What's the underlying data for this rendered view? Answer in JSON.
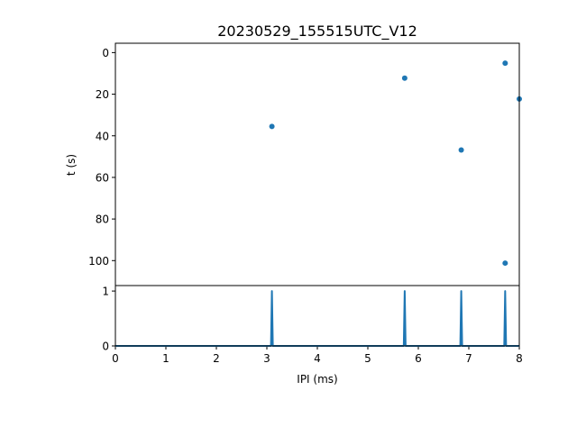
{
  "chart_data": [
    {
      "type": "scatter",
      "title": "20230529_155515UTC_V12",
      "xlabel": "",
      "ylabel": "t (s)",
      "xlim": [
        0,
        8
      ],
      "ylim": [
        -4.5,
        112
      ],
      "y_inverted": true,
      "yticks": [
        0,
        20,
        40,
        60,
        80,
        100
      ],
      "x_ticklabels_shown": false,
      "grid": false,
      "color": "#1f77b4",
      "points": [
        {
          "x": 3.1,
          "y": 35.5
        },
        {
          "x": 5.73,
          "y": 12.3
        },
        {
          "x": 6.85,
          "y": 46.8
        },
        {
          "x": 7.72,
          "y": 5.1
        },
        {
          "x": 7.72,
          "y": 101.2
        },
        {
          "x": 8.0,
          "y": 22.3
        }
      ]
    },
    {
      "type": "line",
      "title": "",
      "xlabel": "IPI (ms)",
      "ylabel": "",
      "xlim": [
        0,
        8
      ],
      "ylim": [
        0,
        1.1
      ],
      "xticks": [
        0,
        1,
        2,
        3,
        4,
        5,
        6,
        7,
        8
      ],
      "yticks": [
        0,
        1
      ],
      "grid": false,
      "color": "#1f77b4",
      "series": [
        {
          "peaks": [
            {
              "x": 3.1,
              "height": 1.0
            },
            {
              "x": 5.73,
              "height": 1.0
            },
            {
              "x": 6.85,
              "height": 1.0
            },
            {
              "x": 7.72,
              "height": 1.0
            }
          ]
        }
      ]
    }
  ]
}
